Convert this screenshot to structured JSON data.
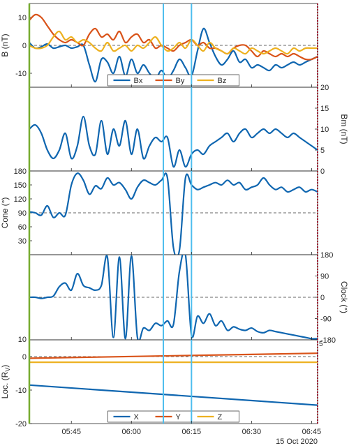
{
  "colors": {
    "blue": "#0F66B0",
    "orange": "#D95319",
    "yellow": "#EDB120",
    "cyan": "#4DBEEE",
    "green": "#77AC30",
    "red": "#A2142F",
    "zero": "#333333"
  },
  "time_axis": {
    "range": [
      5.575,
      6.775
    ],
    "ticks": [
      5.75,
      6.0,
      6.25,
      6.5,
      6.75
    ],
    "tick_labels": [
      "05:45",
      "06:00",
      "06:15",
      "06:30",
      "06:45"
    ],
    "date_label": "15 Oct 2020"
  },
  "markers": {
    "times": [
      6.133,
      6.25
    ]
  },
  "chart_data": [
    {
      "type": "line",
      "id": "b",
      "ylabel": "B (nT)",
      "ylim": [
        -15,
        15
      ],
      "ticks": [
        -10,
        0,
        10
      ],
      "tick_labels": [
        "-10",
        "0",
        "10"
      ],
      "zero_line": true,
      "legend": {
        "placement": "bottom-center",
        "entries": [
          "Bx",
          "By",
          "Bz"
        ]
      },
      "x": [
        5.575,
        5.6,
        5.625,
        5.65,
        5.675,
        5.7,
        5.725,
        5.75,
        5.775,
        5.8,
        5.825,
        5.85,
        5.875,
        5.9,
        5.925,
        5.95,
        5.975,
        6.0,
        6.025,
        6.05,
        6.075,
        6.1,
        6.125,
        6.15,
        6.175,
        6.2,
        6.225,
        6.25,
        6.275,
        6.3,
        6.325,
        6.35,
        6.375,
        6.4,
        6.425,
        6.45,
        6.475,
        6.5,
        6.525,
        6.55,
        6.575,
        6.6,
        6.625,
        6.65,
        6.675,
        6.7,
        6.725,
        6.75,
        6.775
      ],
      "series": [
        {
          "name": "Bx",
          "color": "blue",
          "values": [
            1,
            -1,
            -0.5,
            0.5,
            -1,
            -0.5,
            0,
            -1,
            -0.5,
            0,
            -7,
            -13,
            -5,
            -6,
            -10,
            -4,
            -11,
            -5,
            -10,
            -7,
            -10,
            -12,
            -9,
            -12,
            -9,
            -5,
            -8,
            -11,
            -2,
            6,
            1,
            -4,
            -7,
            -5,
            -2,
            -6,
            -5,
            -8,
            -7,
            -8,
            -9,
            -7,
            -8,
            -7,
            -6,
            -7,
            -6,
            -5,
            -4
          ]
        },
        {
          "name": "By",
          "color": "orange",
          "values": [
            9,
            11,
            10,
            7,
            4,
            2,
            1,
            2,
            1,
            0,
            4,
            6,
            3,
            4,
            2,
            5,
            1,
            3,
            4,
            1,
            2,
            -1,
            0,
            -1,
            -2,
            0,
            1,
            2,
            0,
            1,
            -1,
            -1,
            -2,
            -3,
            -1,
            0,
            0,
            -2,
            -4,
            -2,
            -3,
            -4,
            -3,
            -4,
            -3,
            -4,
            -5,
            -5,
            -4
          ]
        },
        {
          "name": "Bz",
          "color": "yellow",
          "values": [
            0,
            -1,
            -1,
            0,
            3,
            5,
            2,
            3,
            1,
            2,
            1,
            -1,
            -2,
            1,
            -2,
            -1,
            0,
            -2,
            0,
            -1,
            1,
            3,
            0,
            -2,
            -1,
            1,
            -1,
            2,
            0,
            -2,
            1,
            -1,
            -2,
            -3,
            -1,
            -2,
            -3,
            -1,
            -2,
            -3,
            -2,
            -1,
            -2,
            -3,
            -1,
            -2,
            -1,
            -1,
            -1
          ]
        }
      ]
    },
    {
      "type": "line",
      "id": "bm",
      "ylabel": "Bm (nT)",
      "ylabel_side": "right",
      "ylim": [
        0,
        20
      ],
      "ticks": [
        0,
        5,
        10,
        15,
        20
      ],
      "tick_labels": [
        "0",
        "5",
        "10",
        "15",
        "20"
      ],
      "x": [
        5.575,
        5.6,
        5.625,
        5.65,
        5.675,
        5.7,
        5.725,
        5.75,
        5.775,
        5.8,
        5.825,
        5.85,
        5.875,
        5.9,
        5.925,
        5.95,
        5.975,
        6.0,
        6.025,
        6.05,
        6.075,
        6.1,
        6.125,
        6.15,
        6.175,
        6.2,
        6.225,
        6.25,
        6.275,
        6.3,
        6.325,
        6.35,
        6.375,
        6.4,
        6.425,
        6.45,
        6.475,
        6.5,
        6.525,
        6.55,
        6.575,
        6.6,
        6.625,
        6.65,
        6.675,
        6.7,
        6.725,
        6.75,
        6.775
      ],
      "series": [
        {
          "name": "Bm",
          "color": "blue",
          "values": [
            10,
            11,
            9,
            5,
            3,
            5,
            9,
            3,
            6,
            13,
            6,
            4,
            12,
            4,
            10,
            6,
            12,
            4,
            10,
            3,
            6,
            8,
            7,
            8,
            1,
            5,
            1,
            4,
            5,
            4,
            6,
            7,
            8,
            9,
            7,
            9,
            10,
            8,
            9,
            10,
            9,
            10,
            9,
            8,
            9,
            8,
            7,
            6,
            5
          ]
        }
      ]
    },
    {
      "type": "line",
      "id": "cone",
      "ylabel": "Cone (°)",
      "ylim": [
        0,
        180
      ],
      "ticks": [
        30,
        60,
        90,
        120,
        150,
        180
      ],
      "tick_labels": [
        "30",
        "60",
        "90",
        "120",
        "150",
        "180"
      ],
      "ref_line": 90,
      "x": [
        5.575,
        5.6,
        5.625,
        5.65,
        5.675,
        5.7,
        5.725,
        5.75,
        5.775,
        5.8,
        5.825,
        5.85,
        5.875,
        5.9,
        5.925,
        5.95,
        5.975,
        6.0,
        6.025,
        6.05,
        6.075,
        6.1,
        6.125,
        6.15,
        6.175,
        6.2,
        6.225,
        6.25,
        6.275,
        6.3,
        6.325,
        6.35,
        6.375,
        6.4,
        6.425,
        6.45,
        6.475,
        6.5,
        6.525,
        6.55,
        6.575,
        6.6,
        6.625,
        6.65,
        6.675,
        6.7,
        6.725,
        6.75,
        6.775
      ],
      "series": [
        {
          "name": "Cone",
          "color": "blue",
          "values": [
            92,
            90,
            85,
            105,
            80,
            90,
            85,
            150,
            175,
            160,
            130,
            148,
            142,
            165,
            150,
            155,
            140,
            120,
            145,
            160,
            155,
            150,
            160,
            165,
            15,
            10,
            165,
            150,
            140,
            145,
            150,
            155,
            150,
            160,
            150,
            155,
            140,
            145,
            150,
            165,
            150,
            140,
            145,
            135,
            140,
            145,
            135,
            140,
            135
          ]
        }
      ]
    },
    {
      "type": "line",
      "id": "clock",
      "ylabel": "Clock (°)",
      "ylabel_side": "right",
      "ylim": [
        -180,
        180
      ],
      "ticks": [
        -180,
        -90,
        0,
        90,
        180
      ],
      "tick_labels": [
        "-180",
        "-90",
        "0",
        "90",
        "180"
      ],
      "left_tick_labels": [
        "10"
      ],
      "zero_line": true,
      "x": [
        5.575,
        5.6,
        5.625,
        5.65,
        5.675,
        5.7,
        5.725,
        5.75,
        5.775,
        5.8,
        5.825,
        5.85,
        5.875,
        5.9,
        5.925,
        5.95,
        5.975,
        6.0,
        6.025,
        6.05,
        6.075,
        6.1,
        6.125,
        6.15,
        6.175,
        6.2,
        6.225,
        6.25,
        6.275,
        6.3,
        6.325,
        6.35,
        6.375,
        6.4,
        6.425,
        6.45,
        6.475,
        6.5,
        6.525,
        6.55,
        6.575,
        6.6,
        6.625,
        6.65,
        6.675,
        6.7,
        6.725,
        6.75,
        6.775
      ],
      "series": [
        {
          "name": "Clock",
          "color": "blue",
          "values": [
            0,
            0,
            -5,
            0,
            5,
            45,
            60,
            30,
            100,
            50,
            40,
            30,
            50,
            170,
            -170,
            170,
            -175,
            175,
            -170,
            -130,
            -140,
            -110,
            -120,
            -100,
            -115,
            110,
            180,
            -160,
            -80,
            -110,
            -70,
            -120,
            -100,
            -140,
            -125,
            -135,
            -140,
            -130,
            -145,
            -150,
            -140,
            -145,
            -150,
            -155,
            -160,
            -165,
            -170,
            -175,
            -175
          ]
        }
      ]
    },
    {
      "type": "line",
      "id": "loc",
      "ylabel": "Loc. (R",
      "ylabel_subscript": "V",
      "ylabel_close": ")",
      "ylim": [
        -20,
        5
      ],
      "ticks": [
        -20,
        -10,
        0
      ],
      "tick_labels": [
        "-20",
        "-10",
        "0"
      ],
      "right_tick_labels": [
        "5"
      ],
      "zero_line": true,
      "legend": {
        "placement": "bottom-center",
        "entries": [
          "X",
          "Y",
          "Z"
        ]
      },
      "x": [
        5.575,
        6.775
      ],
      "series": [
        {
          "name": "X",
          "color": "blue",
          "values": [
            -8.5,
            -14.5
          ]
        },
        {
          "name": "Y",
          "color": "orange",
          "values": [
            -0.5,
            1.0
          ]
        },
        {
          "name": "Z",
          "color": "yellow",
          "values": [
            -1.7,
            -1.7
          ]
        }
      ]
    }
  ]
}
